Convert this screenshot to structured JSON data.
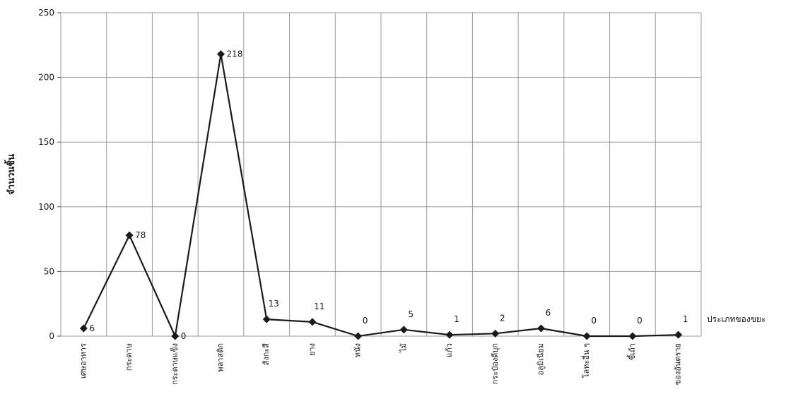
{
  "chart_data": {
    "type": "line",
    "title": "",
    "xlabel": "ประเภทของขยะ",
    "ylabel": "จำนวนชิ้น",
    "ylim": [
      0,
      250
    ],
    "yticks": [
      0,
      50,
      100,
      150,
      200,
      250
    ],
    "grid": true,
    "categories": [
      "เศษอาหาร",
      "กระดาษ",
      "กระดาษแข็ง",
      "พลาสติก",
      "สังกะสี",
      "ยาง",
      "หนัง",
      "ไม้",
      "แก้ว",
      "กระป๋องดีบุก",
      "อลูมิเนียม",
      "โลหะอื่น ๆ",
      "ขี้เถ้า",
      "ของอันตราย"
    ],
    "series": [
      {
        "values": [
          6,
          78,
          0,
          218,
          13,
          11,
          0,
          5,
          1,
          2,
          6,
          0,
          0,
          1
        ]
      }
    ],
    "line_color": "#1a1a1a"
  }
}
